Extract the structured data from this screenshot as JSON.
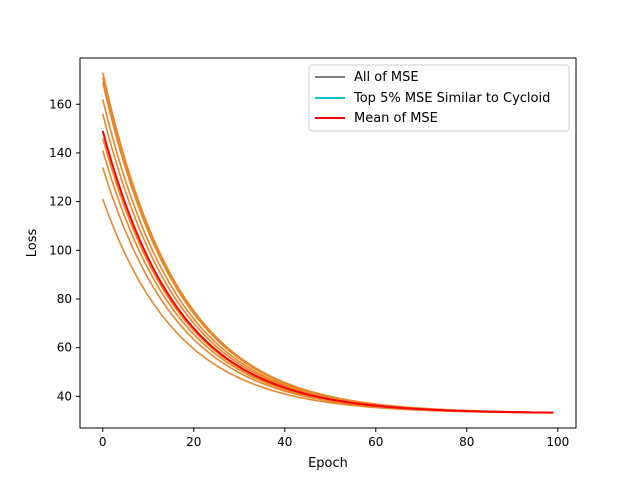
{
  "chart_data": {
    "type": "line",
    "xlabel": "Epoch",
    "ylabel": "Loss",
    "xlim": [
      -5,
      104
    ],
    "ylim": [
      27,
      179
    ],
    "xticks": [
      0,
      20,
      40,
      60,
      80,
      100
    ],
    "yticks": [
      40,
      60,
      80,
      100,
      120,
      140,
      160
    ],
    "grid": false,
    "legend_position": "top-right",
    "legend": [
      {
        "label": "All of MSE",
        "color": "#808080"
      },
      {
        "label": "Top 5% MSE Similar to Cycloid",
        "color": "#17becf"
      },
      {
        "label": "Mean of MSE",
        "color": "#ff0000"
      }
    ],
    "curve_model": {
      "x_start": 0,
      "x_end": 99,
      "asymptote": 33,
      "decay_rate": 0.06
    },
    "series": [
      {
        "color": "#e8862a",
        "start": 173
      },
      {
        "color": "#e8862a",
        "start": 171
      },
      {
        "color": "#e8862a",
        "start": 169
      },
      {
        "color": "#e8862a",
        "start": 162
      },
      {
        "color": "#e8862a",
        "start": 156
      },
      {
        "color": "#e8862a",
        "start": 149
      },
      {
        "color": "#e8862a",
        "start": 146
      },
      {
        "color": "#e8862a",
        "start": 141
      },
      {
        "color": "#e8862a",
        "start": 134
      },
      {
        "color": "#e8862a",
        "start": 121
      },
      {
        "name": "Mean of MSE",
        "color": "#ff0000",
        "start": 149
      }
    ]
  }
}
